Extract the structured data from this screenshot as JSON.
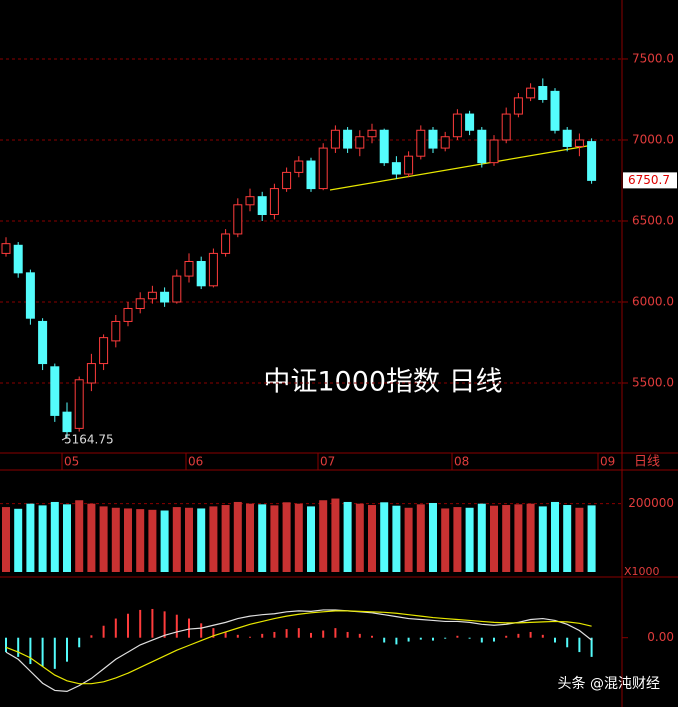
{
  "chart_data": [
    {
      "type": "candlestick",
      "title": "中证1000指数 日线",
      "open": [
        6300,
        6350,
        6180,
        5880,
        5600,
        5320,
        5220,
        5500,
        5620,
        5760,
        5880,
        5960,
        6020,
        6060,
        6000,
        6160,
        6250,
        6100,
        6300,
        6420,
        6600,
        6650,
        6540,
        6700,
        6800,
        6870,
        6700,
        6950,
        7060,
        6950,
        7020,
        7060,
        6860,
        6790,
        6900,
        7060,
        6950,
        7020,
        7160,
        7060,
        6860,
        7000,
        7160,
        7260,
        7330,
        7300,
        7060,
        6960,
        6990
      ],
      "high": [
        6400,
        6370,
        6200,
        5900,
        5620,
        5380,
        5540,
        5680,
        5800,
        5920,
        6000,
        6060,
        6100,
        6090,
        6200,
        6300,
        6280,
        6330,
        6450,
        6640,
        6700,
        6680,
        6730,
        6830,
        6900,
        6890,
        6980,
        7090,
        7080,
        7060,
        7100,
        7070,
        6900,
        6930,
        7090,
        7080,
        7050,
        7190,
        7180,
        7080,
        7030,
        7200,
        7290,
        7350,
        7380,
        7320,
        7080,
        7040,
        7010
      ],
      "low": [
        6280,
        6150,
        5860,
        5580,
        5260,
        5164.75,
        5200,
        5450,
        5580,
        5720,
        5850,
        5930,
        5990,
        5970,
        5990,
        6120,
        6080,
        6090,
        6280,
        6400,
        6560,
        6500,
        6510,
        6680,
        6770,
        6680,
        6690,
        6920,
        6920,
        6900,
        6980,
        6840,
        6760,
        6770,
        6880,
        6920,
        6930,
        7000,
        7030,
        6830,
        6840,
        6980,
        7140,
        7240,
        7230,
        7040,
        6930,
        6900,
        6730
      ],
      "close": [
        6360,
        6180,
        5900,
        5620,
        5300,
        5200,
        5520,
        5620,
        5780,
        5880,
        5960,
        6020,
        6060,
        6000,
        6160,
        6250,
        6100,
        6300,
        6420,
        6600,
        6650,
        6540,
        6700,
        6800,
        6870,
        6700,
        6950,
        7060,
        6950,
        7020,
        7060,
        6860,
        6790,
        6900,
        7060,
        6950,
        7020,
        7160,
        7060,
        6860,
        7000,
        7160,
        7260,
        7320,
        7250,
        7060,
        6960,
        7000,
        6750.7
      ],
      "ylim": [
        5068,
        7864
      ],
      "yticks": [
        {
          "value": 5500,
          "label": "5500.0"
        },
        {
          "value": 6000,
          "label": "6000.0"
        },
        {
          "value": 6500,
          "label": "6500.0"
        },
        {
          "value": 7000,
          "label": "7000.0"
        },
        {
          "value": 7500,
          "label": "7500.0"
        }
      ],
      "low_label": "5164.75",
      "last_label": "6750.7",
      "up_color": "#ff3c3c",
      "down_color": "#54fcfc",
      "months": [
        "05",
        "06",
        "07",
        "08",
        "09"
      ],
      "period": "日线",
      "grid": true
    },
    {
      "type": "bar",
      "unit_label": "X1000",
      "values": [
        190000,
        185000,
        200000,
        195000,
        205000,
        198000,
        210000,
        200000,
        192000,
        188000,
        186000,
        184000,
        182000,
        180000,
        190000,
        188000,
        186000,
        192000,
        196000,
        205000,
        200000,
        198000,
        195000,
        204000,
        200000,
        192000,
        210000,
        215000,
        205000,
        200000,
        196000,
        204000,
        194000,
        188000,
        198000,
        202000,
        186000,
        190000,
        188000,
        200000,
        194000,
        196000,
        198000,
        200000,
        192000,
        205000,
        196000,
        188000,
        195000
      ],
      "ylim": [
        0,
        240000
      ],
      "yticks": [
        200000
      ]
    },
    {
      "type": "macd",
      "hist": [
        -30,
        -40,
        -55,
        -60,
        -65,
        -50,
        -20,
        5,
        25,
        40,
        50,
        58,
        60,
        55,
        48,
        40,
        30,
        20,
        12,
        6,
        2,
        8,
        12,
        18,
        20,
        10,
        15,
        20,
        12,
        8,
        4,
        -10,
        -14,
        -8,
        -4,
        -6,
        -2,
        4,
        -2,
        -10,
        -8,
        4,
        8,
        12,
        6,
        -10,
        -20,
        -30,
        -40
      ],
      "dif": [
        -30,
        -45,
        -70,
        -95,
        -110,
        -112,
        -100,
        -85,
        -65,
        -45,
        -30,
        -15,
        -5,
        5,
        12,
        18,
        20,
        26,
        32,
        40,
        45,
        48,
        50,
        54,
        56,
        55,
        58,
        58,
        56,
        54,
        52,
        48,
        44,
        40,
        38,
        36,
        34,
        34,
        32,
        28,
        26,
        28,
        32,
        38,
        40,
        36,
        28,
        15,
        -5
      ],
      "dea": [
        -20,
        -30,
        -42,
        -60,
        -78,
        -90,
        -96,
        -96,
        -92,
        -84,
        -74,
        -62,
        -50,
        -38,
        -26,
        -16,
        -6,
        4,
        12,
        20,
        28,
        34,
        40,
        45,
        49,
        52,
        54,
        56,
        56,
        55,
        54,
        53,
        51,
        48,
        45,
        42,
        40,
        38,
        36,
        34,
        32,
        31,
        31,
        32,
        33,
        34,
        33,
        30,
        24
      ],
      "ylim": [
        -130,
        110
      ],
      "yticks": [
        {
          "value": 0,
          "label": "0.00"
        }
      ]
    }
  ],
  "watermark": "头条 @混沌财经"
}
